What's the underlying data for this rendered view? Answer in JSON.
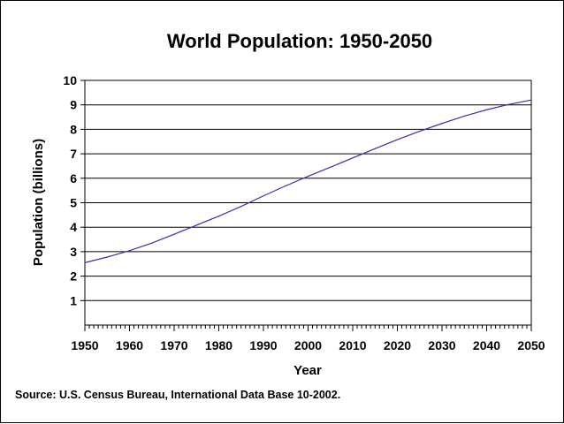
{
  "chart_data": {
    "type": "line",
    "title": "World Population: 1950-2050",
    "xlabel": "Year",
    "ylabel": "Population (billions)",
    "xlim": [
      1950,
      2050
    ],
    "ylim": [
      0,
      10
    ],
    "x_ticks": [
      "1950",
      "1960",
      "1970",
      "1980",
      "1990",
      "2000",
      "2010",
      "2020",
      "2030",
      "2040",
      "2050"
    ],
    "y_ticks": [
      "1",
      "2",
      "3",
      "4",
      "5",
      "6",
      "7",
      "8",
      "9",
      "10"
    ],
    "grid": "horizontal",
    "legend": "none",
    "series": [
      {
        "color": "#3333aa",
        "x": [
          1950,
          1955,
          1960,
          1965,
          1970,
          1975,
          1980,
          1985,
          1990,
          1995,
          2000,
          2005,
          2010,
          2015,
          2020,
          2025,
          2030,
          2035,
          2040,
          2045,
          2050
        ],
        "values": [
          2.55,
          2.78,
          3.04,
          3.35,
          3.71,
          4.08,
          4.45,
          4.85,
          5.28,
          5.69,
          6.08,
          6.45,
          6.83,
          7.21,
          7.58,
          7.92,
          8.24,
          8.54,
          8.8,
          9.02,
          9.2
        ]
      }
    ]
  },
  "source": "Source: U.S. Census Bureau, International Data Base 10-2002."
}
